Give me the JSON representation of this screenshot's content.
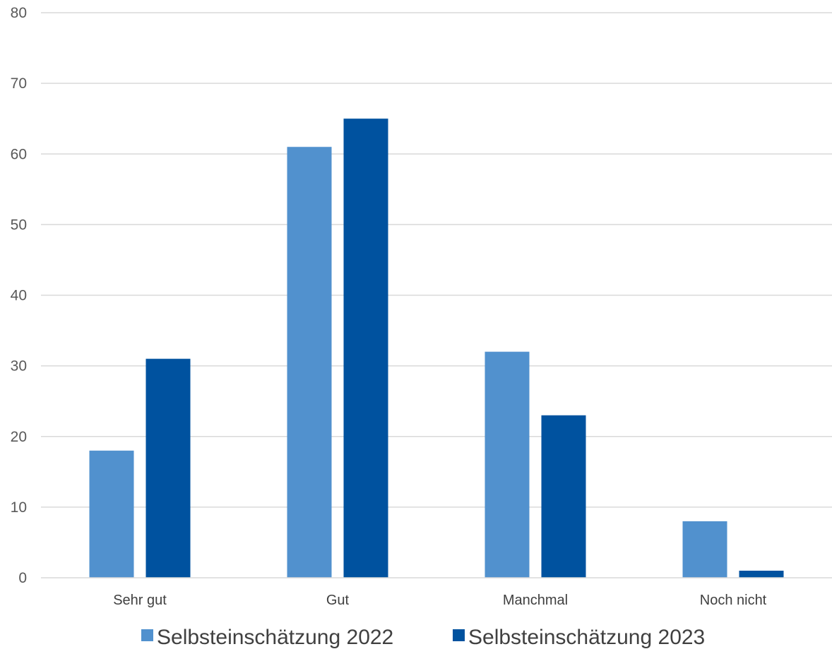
{
  "chart_data": {
    "type": "bar",
    "title": "",
    "xlabel": "",
    "ylabel": "",
    "categories": [
      "Sehr gut",
      "Gut",
      "Manchmal",
      "Noch nicht"
    ],
    "series": [
      {
        "name": "Selbsteinschätzung 2022",
        "color": "#5191CE",
        "values": [
          18,
          61,
          32,
          8
        ]
      },
      {
        "name": "Selbsteinschätzung 2023",
        "color": "#00529F",
        "values": [
          31,
          65,
          23,
          1
        ]
      }
    ],
    "ylim": [
      0,
      80
    ],
    "yticks": [
      "0",
      "10",
      "20",
      "30",
      "40",
      "50",
      "60",
      "70",
      "80"
    ],
    "grid": true,
    "legend_position": "bottom-center"
  }
}
